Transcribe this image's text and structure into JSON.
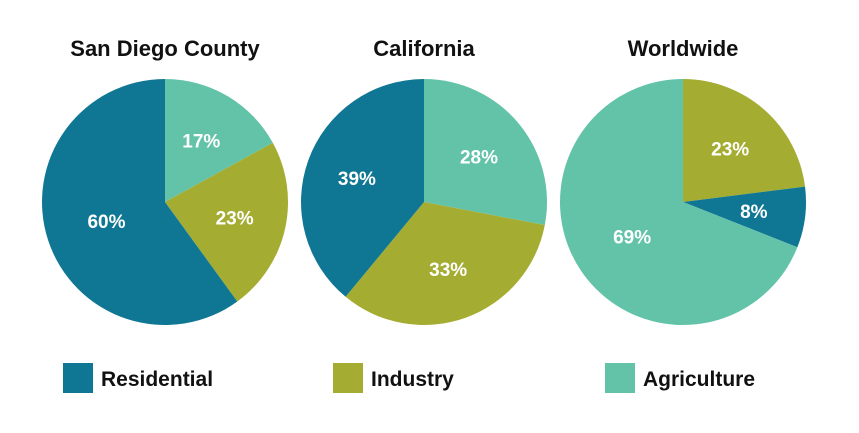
{
  "chart_data": {
    "type": "pie",
    "legend": {
      "placement": "bottom",
      "items": [
        {
          "name": "Residential",
          "color": "#0f7793"
        },
        {
          "name": "Industry",
          "color": "#a4ad32"
        },
        {
          "name": "Agriculture",
          "color": "#63c3a8"
        }
      ]
    },
    "charts": [
      {
        "title": "San Diego County",
        "slices": [
          {
            "name": "Agriculture",
            "value": 17,
            "label": "17%"
          },
          {
            "name": "Industry",
            "value": 23,
            "label": "23%"
          },
          {
            "name": "Residential",
            "value": 60,
            "label": "60%"
          }
        ]
      },
      {
        "title": "California",
        "slices": [
          {
            "name": "Agriculture",
            "value": 28,
            "label": "28%"
          },
          {
            "name": "Industry",
            "value": 33,
            "label": "33%"
          },
          {
            "name": "Residential",
            "value": 39,
            "label": "39%"
          }
        ]
      },
      {
        "title": "Worldwide",
        "slices": [
          {
            "name": "Industry",
            "value": 23,
            "label": "23%"
          },
          {
            "name": "Residential",
            "value": 8,
            "label": "8%"
          },
          {
            "name": "Agriculture",
            "value": 69,
            "label": "69%"
          }
        ]
      }
    ]
  }
}
